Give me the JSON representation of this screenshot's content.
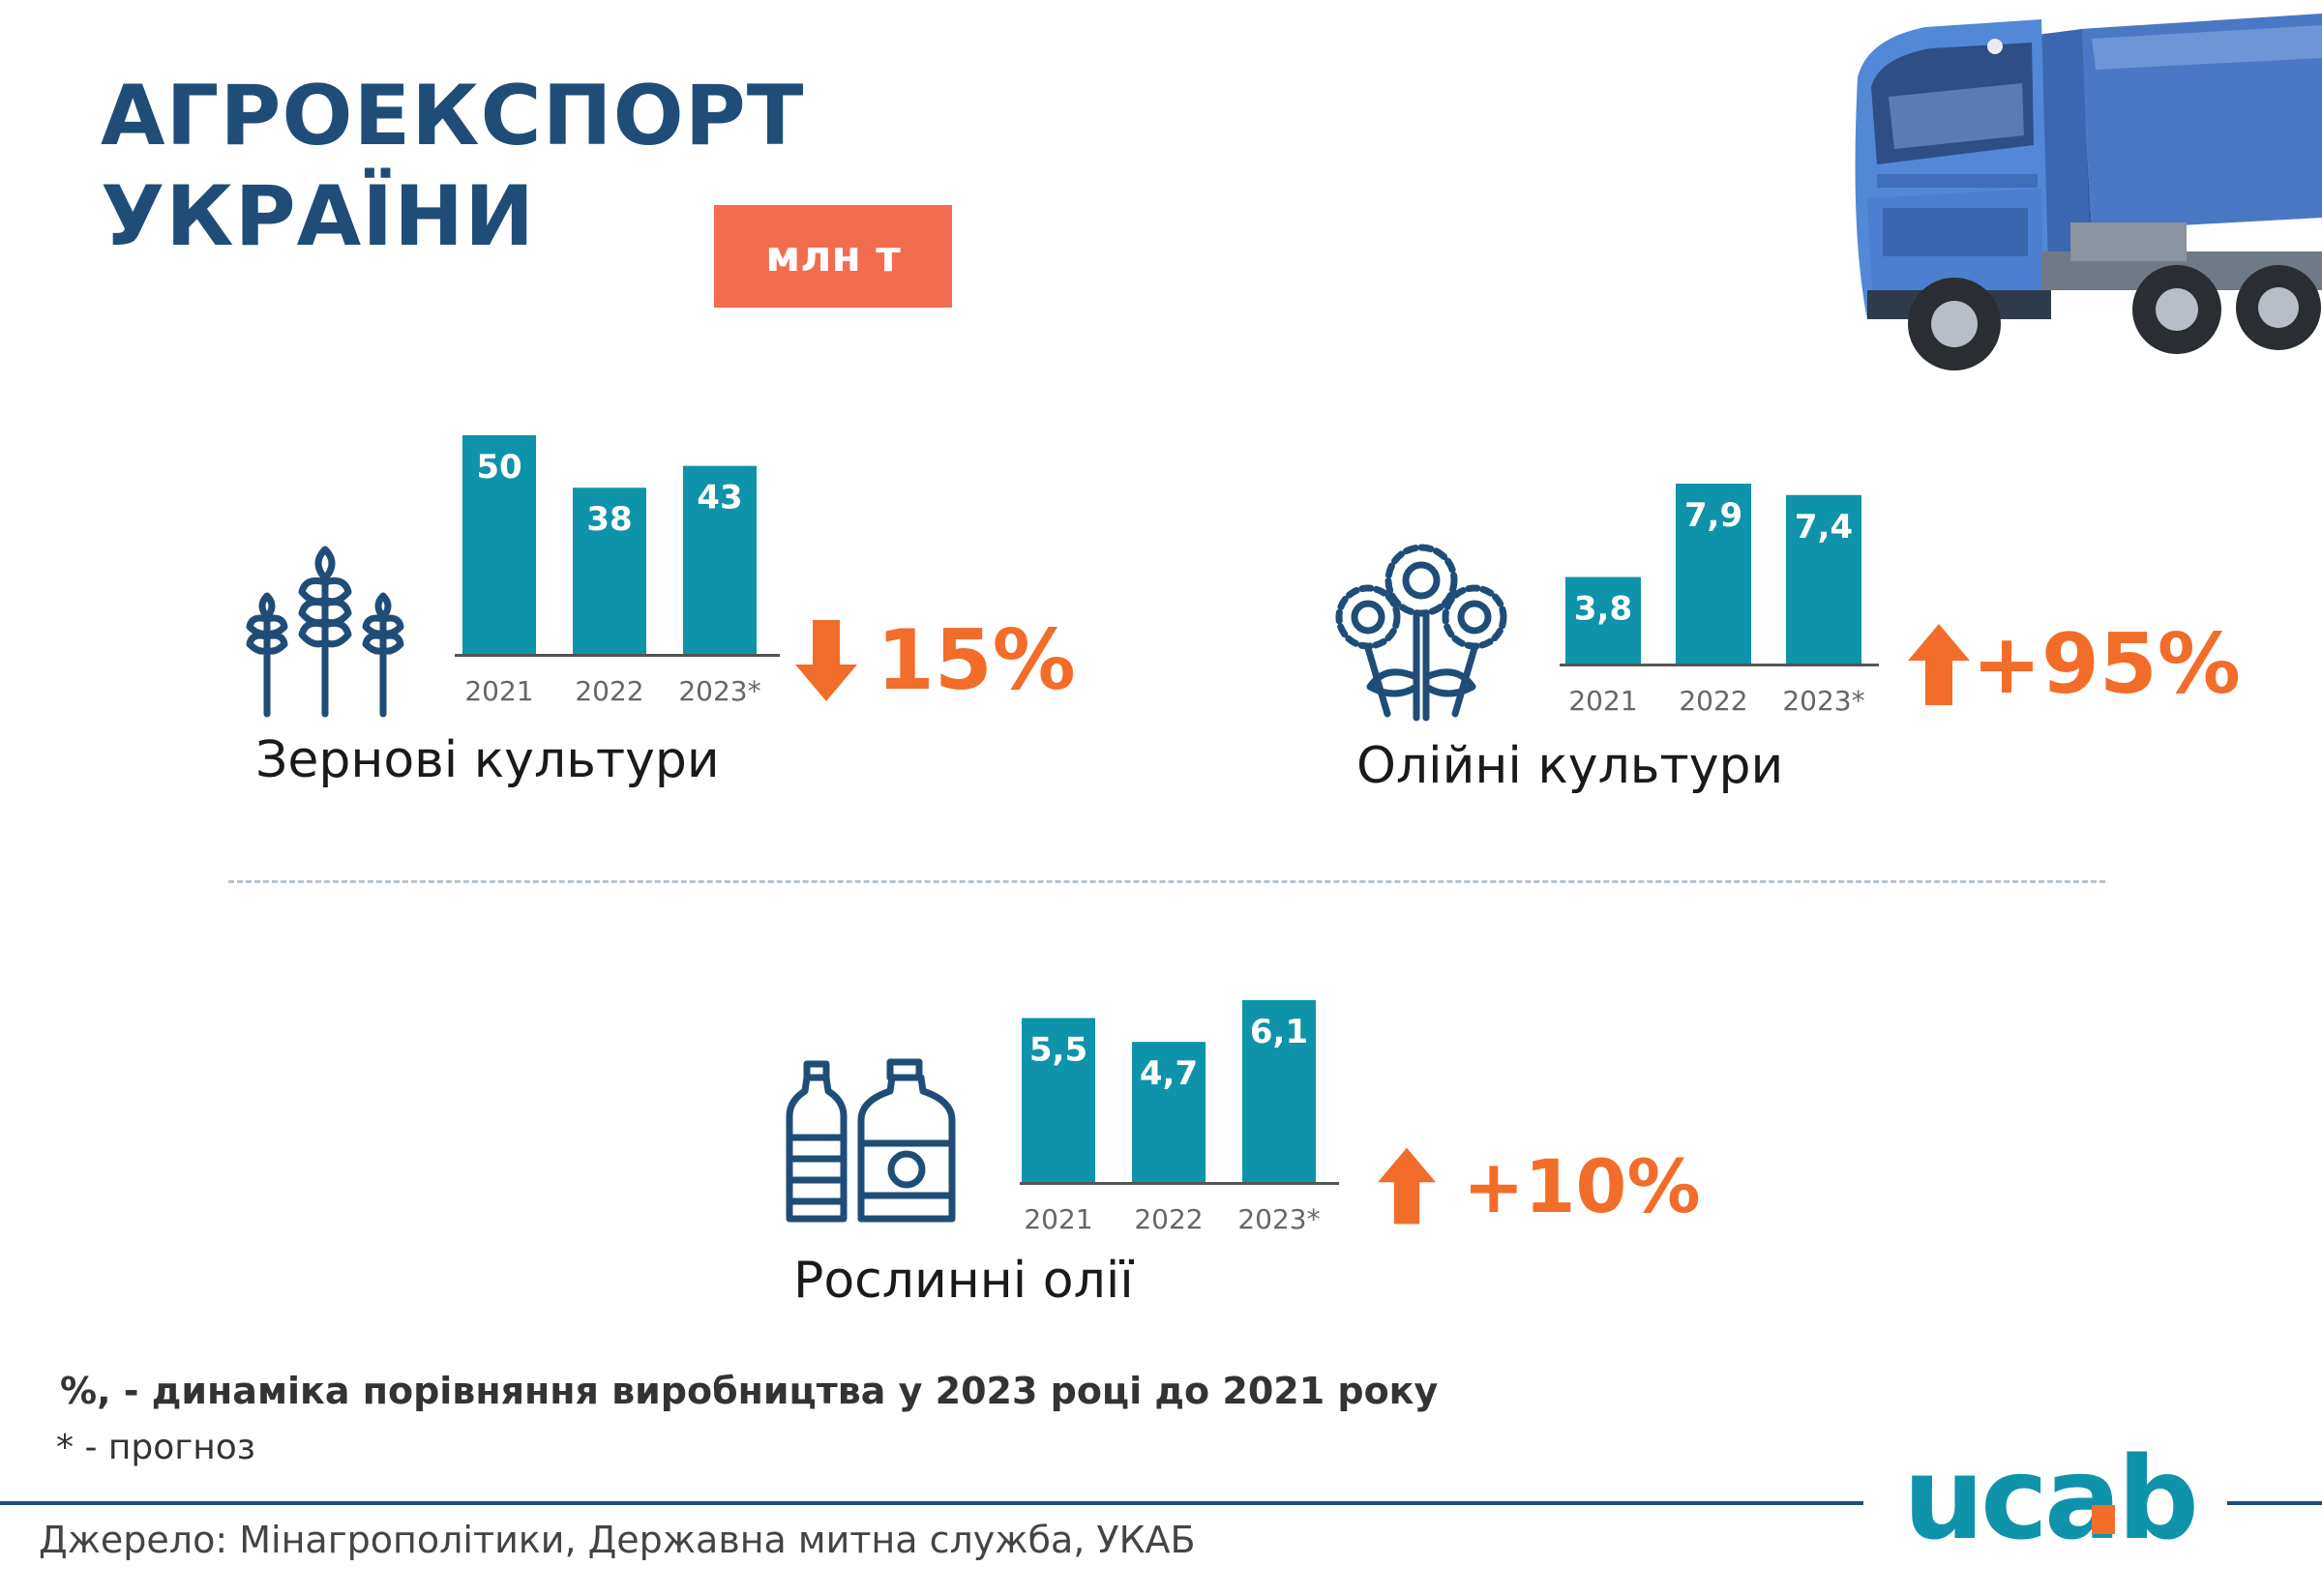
{
  "header": {
    "title_line1": "АГРОЕКСПОРТ",
    "title_line2": "УКРАЇНИ",
    "unit": "млн т"
  },
  "colors": {
    "title": "#1f4d78",
    "bar": "#0f93aa",
    "accent": "#f26d2a",
    "badge": "#f26d4f",
    "icon": "#1f4d78"
  },
  "icons": {
    "grain": "wheat-icon",
    "oilseed": "sunflower-icon",
    "oil": "oil-bottles-icon",
    "vehicle": "truck-icon"
  },
  "chart_data": [
    {
      "type": "bar",
      "categories": [
        "2021",
        "2022",
        "2023*"
      ],
      "values": [
        50,
        38,
        43
      ],
      "value_labels": [
        "50",
        "38",
        "43"
      ],
      "title": "Зернові культури",
      "change": "15%",
      "change_direction": "down"
    },
    {
      "type": "bar",
      "categories": [
        "2021",
        "2022",
        "2023*"
      ],
      "values": [
        3.8,
        7.9,
        7.4
      ],
      "value_labels": [
        "3,8",
        "7,9",
        "7,4"
      ],
      "title": "Олійні культури",
      "change": "+95%",
      "change_direction": "up"
    },
    {
      "type": "bar",
      "categories": [
        "2021",
        "2022",
        "2023*"
      ],
      "values": [
        5.5,
        4.7,
        6.1
      ],
      "value_labels": [
        "5,5",
        "4,7",
        "6,1"
      ],
      "title": "Рослинні олії",
      "change": "+10%",
      "change_direction": "up"
    }
  ],
  "notes": {
    "dynamics": "%, - динаміка порівняння виробництва  у 2023 році до 2021 року",
    "forecast": "* - прогноз"
  },
  "footer": {
    "source": "Джерело: Мінагрополітики, Державна митна служба, УКАБ",
    "logo": "ucab"
  }
}
